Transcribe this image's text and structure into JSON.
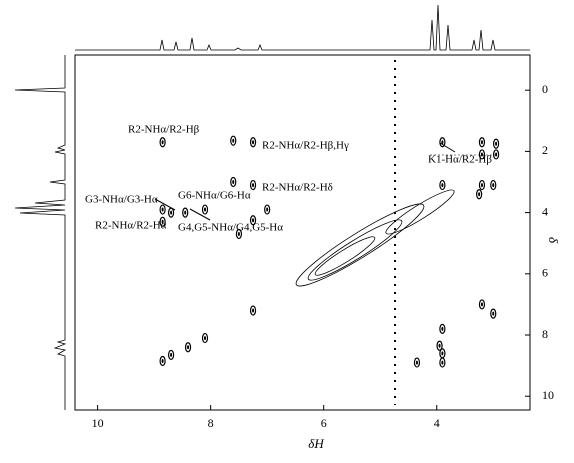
{
  "chart_data": {
    "type": "contour",
    "x_label": "δH",
    "y_label": "δ",
    "xlim": [
      10.4,
      2.35
    ],
    "ylim": [
      -1.15,
      10.45
    ],
    "xticks": [
      10,
      8,
      6,
      4
    ],
    "yticks": [
      0,
      2,
      4,
      6,
      8,
      10
    ],
    "x_reversed": true,
    "y_reversed": true,
    "color": "#000000",
    "x": [
      8.85,
      7.6,
      7.25,
      3.9,
      3.2,
      2.95,
      3.2,
      2.95,
      8.85,
      8.7,
      8.45,
      8.1,
      7.5,
      7.25,
      7.25,
      7.6,
      7.0,
      3.9,
      3.2,
      3.0,
      3.25,
      8.85,
      8.7,
      8.4,
      8.1,
      7.25,
      3.9,
      3.95,
      3.9,
      4.35,
      3.2,
      3.0,
      3.9,
      8.85
    ],
    "values": [
      1.7,
      1.65,
      1.7,
      1.7,
      1.7,
      1.75,
      2.1,
      2.1,
      4.3,
      4.0,
      4.0,
      3.9,
      4.7,
      3.1,
      4.25,
      3.0,
      3.9,
      3.1,
      3.1,
      3.1,
      3.4,
      8.85,
      8.65,
      8.4,
      8.1,
      7.2,
      8.6,
      8.35,
      8.9,
      8.9,
      7.0,
      7.3,
      7.8,
      3.9
    ],
    "annotations": [
      "R2-NHα/R2-Hβ",
      "R2-NHα/R2-Hβ,Hγ",
      "K1-Hα/R2-Hβ",
      "R2-NHα/R2-Hδ",
      "G6-NHα/G6-Hα",
      "G3-NHα/G3-Hα",
      "R2-NHα/R2-Hα",
      "G4,G5-NHα/G4,G5-Hα"
    ]
  }
}
